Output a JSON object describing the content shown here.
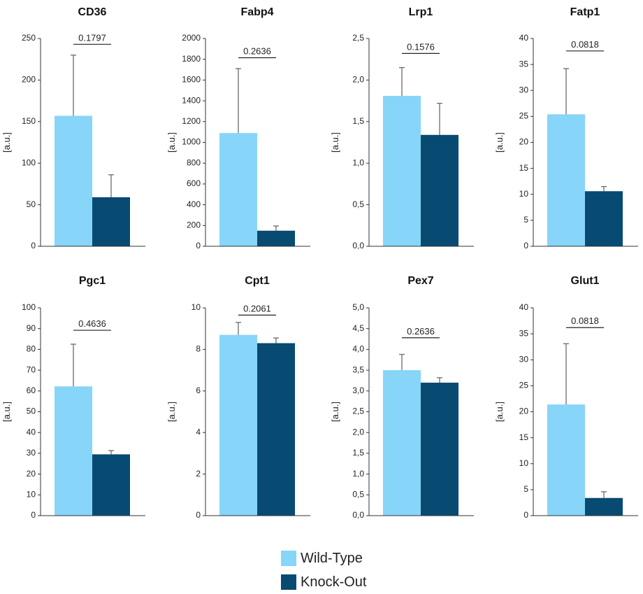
{
  "colors": {
    "wild_type": "#87D5F8",
    "knock_out": "#074A72",
    "axis": "#333333",
    "error": "#6b6b6b"
  },
  "ylabel": "[a.u.]",
  "legend": {
    "items": [
      {
        "label": "Wild-Type"
      },
      {
        "label": "Knock-Out"
      }
    ]
  },
  "chart_data": [
    {
      "type": "bar",
      "title": "CD36",
      "categories": [
        "Wild-Type",
        "Knock-Out"
      ],
      "values": [
        157,
        59
      ],
      "errors": [
        73,
        27
      ],
      "ylim": [
        0,
        250
      ],
      "yticks": [
        0,
        50,
        100,
        150,
        200,
        250
      ],
      "ytick_labels": [
        "0",
        "50",
        "100",
        "150",
        "200",
        "250"
      ],
      "p_value": "0.1797",
      "p_level": 243
    },
    {
      "type": "bar",
      "title": "Fabp4",
      "categories": [
        "Wild-Type",
        "Knock-Out"
      ],
      "values": [
        1090,
        150
      ],
      "errors": [
        620,
        45
      ],
      "ylim": [
        0,
        2000
      ],
      "yticks": [
        0,
        200,
        400,
        600,
        800,
        1000,
        1200,
        1400,
        1600,
        1800,
        2000
      ],
      "ytick_labels": [
        "0",
        "200",
        "400",
        "600",
        "800",
        "1000",
        "1200",
        "1400",
        "1600",
        "1800",
        "2000"
      ],
      "p_value": "0.2636",
      "p_level": 1815
    },
    {
      "type": "bar",
      "title": "Lrp1",
      "categories": [
        "Wild-Type",
        "Knock-Out"
      ],
      "values": [
        1.81,
        1.34
      ],
      "errors": [
        0.34,
        0.38
      ],
      "ylim": [
        0,
        2.5
      ],
      "yticks": [
        0,
        0.5,
        1,
        1.5,
        2,
        2.5
      ],
      "ytick_labels": [
        "0,0",
        "0,5",
        "1,0",
        "1,5",
        "2,0",
        "2,5"
      ],
      "p_value": "0.1576",
      "p_level": 2.32
    },
    {
      "type": "bar",
      "title": "Fatp1",
      "categories": [
        "Wild-Type",
        "Knock-Out"
      ],
      "values": [
        25.4,
        10.6
      ],
      "errors": [
        8.8,
        0.9
      ],
      "ylim": [
        0,
        40
      ],
      "yticks": [
        0,
        5,
        10,
        15,
        20,
        25,
        30,
        35,
        40
      ],
      "ytick_labels": [
        "0",
        "5",
        "10",
        "15",
        "20",
        "25",
        "30",
        "35",
        "40"
      ],
      "p_value": "0.0818",
      "p_level": 37.6
    },
    {
      "type": "bar",
      "title": "Pgc1",
      "categories": [
        "Wild-Type",
        "Knock-Out"
      ],
      "values": [
        62.2,
        29.5
      ],
      "errors": [
        20.3,
        1.8
      ],
      "ylim": [
        0,
        100
      ],
      "yticks": [
        0,
        10,
        20,
        30,
        40,
        50,
        60,
        70,
        80,
        90,
        100
      ],
      "ytick_labels": [
        "0",
        "10",
        "20",
        "30",
        "40",
        "50",
        "60",
        "70",
        "80",
        "90",
        "100"
      ],
      "p_value": "0.4636",
      "p_level": 89.2
    },
    {
      "type": "bar",
      "title": "Cpt1",
      "categories": [
        "Wild-Type",
        "Knock-Out"
      ],
      "values": [
        8.7,
        8.3
      ],
      "errors": [
        0.6,
        0.25
      ],
      "ylim": [
        0,
        10
      ],
      "yticks": [
        0,
        2,
        4,
        6,
        8,
        10
      ],
      "ytick_labels": [
        "0",
        "2",
        "4",
        "6",
        "8",
        "10"
      ],
      "p_value": "0.2061",
      "p_level": 9.65
    },
    {
      "type": "bar",
      "title": "Pex7",
      "categories": [
        "Wild-Type",
        "Knock-Out"
      ],
      "values": [
        3.5,
        3.2
      ],
      "errors": [
        0.38,
        0.12
      ],
      "ylim": [
        0,
        5
      ],
      "yticks": [
        0,
        0.5,
        1,
        1.5,
        2,
        2.5,
        3,
        3.5,
        4,
        4.5,
        5
      ],
      "ytick_labels": [
        "0,0",
        "0,5",
        "1,0",
        "1,5",
        "2,0",
        "2,5",
        "3,0",
        "3,5",
        "4,0",
        "4,5",
        "5,0"
      ],
      "p_value": "0.2636",
      "p_level": 4.28
    },
    {
      "type": "bar",
      "title": "Glut1",
      "categories": [
        "Wild-Type",
        "Knock-Out"
      ],
      "values": [
        21.4,
        3.4
      ],
      "errors": [
        11.7,
        1.2
      ],
      "ylim": [
        0,
        40
      ],
      "yticks": [
        0,
        5,
        10,
        15,
        20,
        25,
        30,
        35,
        40
      ],
      "ytick_labels": [
        "0",
        "5",
        "10",
        "15",
        "20",
        "25",
        "30",
        "35",
        "40"
      ],
      "p_value": "0.0818",
      "p_level": 36.2
    }
  ]
}
